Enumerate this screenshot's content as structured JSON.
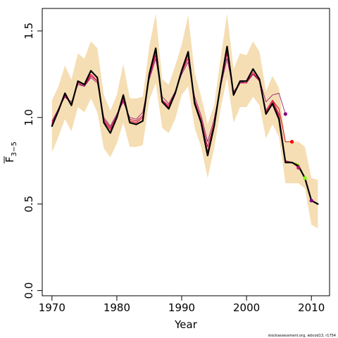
{
  "chart_data": {
    "type": "line",
    "xlabel": "Year",
    "ylabel_main": "F",
    "ylabel_sub": "3−5",
    "xlim": [
      1968.5,
      2012.8
    ],
    "ylim": [
      -0.03,
      1.63
    ],
    "x_ticks": [
      1970,
      1980,
      1990,
      2000,
      2010
    ],
    "x_tick_labels": [
      "1970",
      "1980",
      "1990",
      "2000",
      "2010"
    ],
    "y_ticks": [
      0.0,
      0.5,
      1.0,
      1.5
    ],
    "y_tick_labels": [
      "0.0",
      "0.5",
      "1.0",
      "1.5"
    ],
    "footer": "stockassessment.org, wbcod13, r1754",
    "colors": {
      "band": "#f5deb3",
      "main": "#000000",
      "retro": [
        "#e8174a",
        "#c0105a",
        "#8b0a6e",
        "#cc1010",
        "#7cfc00",
        "#800080"
      ]
    },
    "years": [
      1970,
      1971,
      1972,
      1973,
      1974,
      1975,
      1976,
      1977,
      1978,
      1979,
      1980,
      1981,
      1982,
      1983,
      1984,
      1985,
      1986,
      1987,
      1988,
      1989,
      1990,
      1991,
      1992,
      1993,
      1994,
      1995,
      1996,
      1997,
      1998,
      1999,
      2000,
      2001,
      2002,
      2003,
      2004,
      2005,
      2006,
      2007,
      2008,
      2009,
      2010,
      2011
    ],
    "band_upper": [
      1.1,
      1.18,
      1.3,
      1.22,
      1.37,
      1.34,
      1.44,
      1.4,
      1.13,
      1.04,
      1.13,
      1.31,
      1.11,
      1.11,
      1.12,
      1.41,
      1.6,
      1.22,
      1.19,
      1.3,
      1.42,
      1.59,
      1.26,
      1.12,
      0.96,
      1.07,
      1.34,
      1.6,
      1.28,
      1.37,
      1.36,
      1.44,
      1.38,
      1.15,
      1.24,
      1.17,
      0.86,
      0.86,
      0.86,
      0.83,
      0.65,
      0.64
    ],
    "band_lower": [
      0.8,
      0.89,
      0.99,
      0.92,
      1.06,
      1.03,
      1.11,
      1.03,
      0.82,
      0.77,
      0.85,
      0.97,
      0.83,
      0.83,
      0.84,
      1.1,
      1.2,
      0.94,
      0.91,
      0.99,
      1.13,
      1.18,
      0.94,
      0.83,
      0.65,
      0.82,
      1.05,
      1.23,
      0.97,
      1.06,
      1.06,
      1.12,
      1.07,
      0.88,
      0.96,
      0.89,
      0.62,
      0.62,
      0.62,
      0.59,
      0.38,
      0.36
    ],
    "series": [
      {
        "x": [
          1970,
          1971,
          1972,
          1973,
          1974,
          1975,
          1976,
          1977,
          1978,
          1979,
          1980,
          1981,
          1982,
          1983,
          1984,
          1985,
          1986,
          1987,
          1988,
          1989,
          1990,
          1991,
          1992,
          1993,
          1994,
          1995,
          1996,
          1997,
          1998,
          1999,
          2000,
          2001,
          2002,
          2003,
          2004,
          2005,
          2006,
          2007,
          2008,
          2009,
          2010,
          2011
        ],
        "y": [
          0.95,
          1.04,
          1.14,
          1.07,
          1.21,
          1.19,
          1.27,
          1.23,
          0.97,
          0.91,
          1.0,
          1.13,
          0.97,
          0.96,
          0.98,
          1.25,
          1.4,
          1.09,
          1.05,
          1.14,
          1.27,
          1.38,
          1.08,
          0.97,
          0.78,
          0.95,
          1.19,
          1.41,
          1.13,
          1.21,
          1.21,
          1.28,
          1.22,
          1.02,
          1.08,
          0.99,
          0.74,
          0.74,
          0.72,
          0.65,
          0.52,
          0.5
        ],
        "color": "#000000",
        "width": 2.2
      },
      {
        "x": [
          1970,
          1971,
          1972,
          1973,
          1974,
          1975,
          1976,
          1977,
          1978,
          1979,
          1980,
          1981,
          1982,
          1983,
          1984,
          1985,
          1986,
          1987,
          1988,
          1989,
          1990,
          1991,
          1992,
          1993,
          1994,
          1995,
          1996,
          1997,
          1998,
          1999,
          2000,
          2001,
          2002,
          2003,
          2004,
          2005,
          2006,
          2007,
          2008,
          2009
        ],
        "y": [
          0.96,
          1.05,
          1.13,
          1.07,
          1.2,
          1.18,
          1.25,
          1.21,
          0.98,
          0.93,
          1.0,
          1.11,
          0.98,
          0.97,
          1.0,
          1.24,
          1.37,
          1.1,
          1.06,
          1.14,
          1.26,
          1.36,
          1.09,
          0.98,
          0.8,
          0.96,
          1.18,
          1.39,
          1.13,
          1.2,
          1.2,
          1.26,
          1.21,
          1.03,
          1.09,
          1.01,
          0.75,
          0.74,
          0.73,
          0.65
        ],
        "color": "#e8174a",
        "width": 1.2
      },
      {
        "x": [
          1970,
          1971,
          1972,
          1973,
          1974,
          1975,
          1976,
          1977,
          1978,
          1979,
          1980,
          1981,
          1982,
          1983,
          1984,
          1985,
          1986,
          1987,
          1988,
          1989,
          1990,
          1991,
          1992,
          1993,
          1994,
          1995,
          1996,
          1997,
          1998,
          1999,
          2000,
          2001,
          2002,
          2003,
          2004,
          2005,
          2006,
          2007,
          2008
        ],
        "y": [
          0.97,
          1.05,
          1.12,
          1.08,
          1.2,
          1.18,
          1.24,
          1.21,
          0.99,
          0.94,
          1.01,
          1.1,
          0.99,
          0.98,
          1.01,
          1.23,
          1.36,
          1.1,
          1.07,
          1.15,
          1.26,
          1.34,
          1.1,
          0.99,
          0.83,
          0.97,
          1.18,
          1.37,
          1.14,
          1.2,
          1.2,
          1.25,
          1.21,
          1.04,
          1.1,
          1.02,
          0.75,
          0.74,
          0.71
        ],
        "color": "#c0105a",
        "width": 1.0
      },
      {
        "x": [
          1970,
          1971,
          1972,
          1973,
          1974,
          1975,
          1976,
          1977,
          1978,
          1979,
          1980,
          1981,
          1982,
          1983,
          1984,
          1985,
          1986,
          1987,
          1988,
          1989,
          1990,
          1991,
          1992,
          1993,
          1994,
          1995,
          1996,
          1997,
          1998,
          1999,
          2000,
          2001,
          2002,
          2003,
          2004,
          2005,
          2006
        ],
        "y": [
          0.98,
          1.05,
          1.12,
          1.09,
          1.19,
          1.18,
          1.23,
          1.2,
          1.0,
          0.95,
          1.02,
          1.09,
          1.0,
          0.99,
          1.03,
          1.22,
          1.34,
          1.12,
          1.08,
          1.15,
          1.25,
          1.32,
          1.12,
          1.01,
          0.86,
          0.99,
          1.18,
          1.34,
          1.15,
          1.2,
          1.21,
          1.25,
          1.22,
          1.09,
          1.13,
          1.14,
          1.02
        ],
        "color": "#8b0a6e",
        "width": 0.8
      },
      {
        "x": [
          2004,
          2005,
          2006,
          2007
        ],
        "y": [
          1.1,
          1.05,
          0.86,
          0.86
        ],
        "color": "#cc1010",
        "width": 1.0
      },
      {
        "x": [
          2007,
          2008,
          2009
        ],
        "y": [
          0.74,
          0.73,
          0.65
        ],
        "color": "#7cfc00",
        "width": 1.2
      }
    ],
    "end_points": [
      {
        "x": 2006,
        "y": 1.02,
        "color": "#800080"
      },
      {
        "x": 2007,
        "y": 0.86,
        "color": "#ff0000"
      },
      {
        "x": 2008,
        "y": 0.71,
        "color": "#c0107a"
      },
      {
        "x": 2009,
        "y": 0.65,
        "color": "#7cfc00"
      },
      {
        "x": 2010,
        "y": 0.52,
        "color": "#800080"
      }
    ]
  }
}
